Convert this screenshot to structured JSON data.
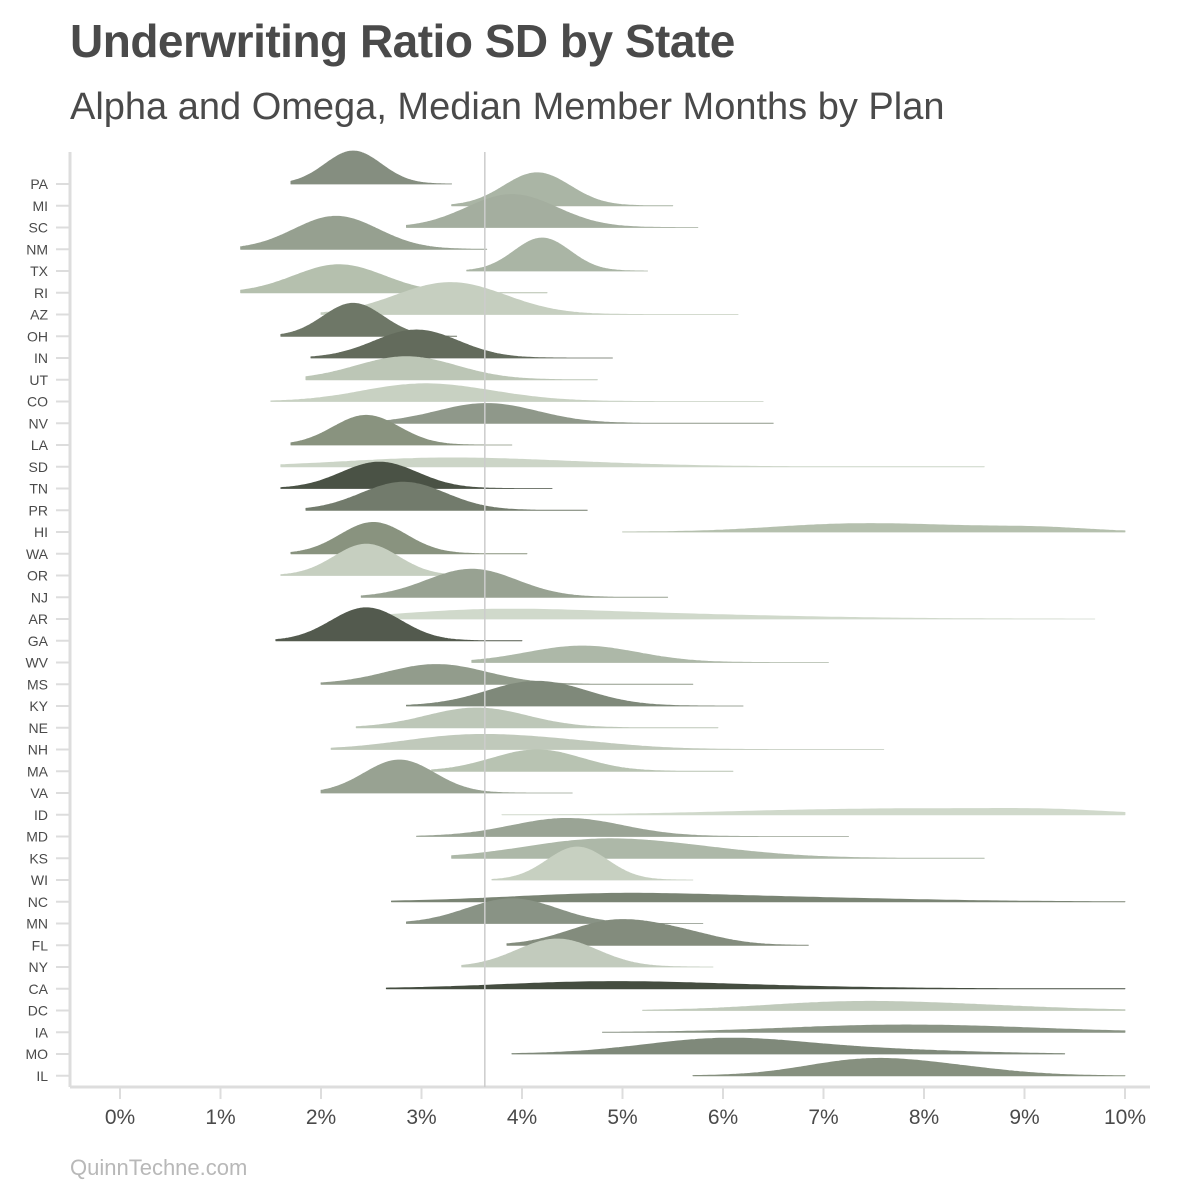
{
  "title": "Underwriting Ratio SD by State",
  "subtitle": "Alpha and Omega, Median Member Months by Plan",
  "caption": "QuinnTechne.com",
  "chart_data": {
    "type": "ridgeline",
    "x_ticks": [
      0,
      1,
      2,
      3,
      4,
      5,
      6,
      7,
      8,
      9,
      10
    ],
    "x_tick_labels": [
      "0%",
      "1%",
      "2%",
      "3%",
      "4%",
      "5%",
      "6%",
      "7%",
      "8%",
      "9%",
      "10%"
    ],
    "xlim": [
      0,
      10
    ],
    "reference_line": 3.63,
    "grid": false,
    "states": [
      {
        "label": "PA",
        "min": 1.7,
        "max": 3.3,
        "peaks": [
          [
            2.32,
            0.28,
            1
          ]
        ],
        "color": "#858e80"
      },
      {
        "label": "MI",
        "min": 3.3,
        "max": 5.5,
        "peaks": [
          [
            4.15,
            0.33,
            1
          ]
        ],
        "color": "#aab5a5"
      },
      {
        "label": "SC",
        "min": 2.85,
        "max": 5.75,
        "peaks": [
          [
            3.9,
            0.45,
            1
          ]
        ],
        "color": "#a4ae9f"
      },
      {
        "label": "NM",
        "min": 1.2,
        "max": 3.65,
        "peaks": [
          [
            2.15,
            0.42,
            1
          ]
        ],
        "color": "#96a090"
      },
      {
        "label": "TX",
        "min": 3.45,
        "max": 5.25,
        "peaks": [
          [
            4.2,
            0.28,
            1
          ]
        ],
        "color": "#aab5a5"
      },
      {
        "label": "RI",
        "min": 1.2,
        "max": 4.25,
        "peaks": [
          [
            2.18,
            0.45,
            0.85
          ]
        ],
        "color": "#b5c0ae"
      },
      {
        "label": "AZ",
        "min": 2.0,
        "max": 6.15,
        "peaks": [
          [
            3.1,
            0.5,
            0.55
          ],
          [
            3.5,
            0.5,
            0.5
          ]
        ],
        "color": "#c6cfc0"
      },
      {
        "label": "OH",
        "min": 1.6,
        "max": 3.35,
        "peaks": [
          [
            2.32,
            0.3,
            1
          ]
        ],
        "color": "#6e7767"
      },
      {
        "label": "IN",
        "min": 1.9,
        "max": 4.9,
        "peaks": [
          [
            2.95,
            0.42,
            0.85
          ]
        ],
        "color": "#636b5c"
      },
      {
        "label": "UT",
        "min": 1.85,
        "max": 4.75,
        "peaks": [
          [
            2.85,
            0.5,
            0.7
          ]
        ],
        "color": "#bcc6b6"
      },
      {
        "label": "CO",
        "min": 1.5,
        "max": 6.4,
        "peaks": [
          [
            2.85,
            0.55,
            0.35
          ],
          [
            3.4,
            0.6,
            0.25
          ]
        ],
        "color": "#c8d1c2"
      },
      {
        "label": "NV",
        "min": 2.3,
        "max": 6.5,
        "peaks": [
          [
            3.65,
            0.5,
            0.6
          ]
        ],
        "color": "#8f988a"
      },
      {
        "label": "LA",
        "min": 1.7,
        "max": 3.9,
        "peaks": [
          [
            2.45,
            0.33,
            0.9
          ]
        ],
        "color": "#89937f"
      },
      {
        "label": "SD",
        "min": 1.6,
        "max": 8.6,
        "peaks": [
          [
            3.0,
            0.9,
            0.2
          ],
          [
            4.2,
            1.0,
            0.12
          ]
        ],
        "color": "#ccd5c7"
      },
      {
        "label": "TN",
        "min": 1.6,
        "max": 4.3,
        "peaks": [
          [
            2.58,
            0.38,
            0.8
          ]
        ],
        "color": "#4a5245"
      },
      {
        "label": "PR",
        "min": 1.85,
        "max": 4.65,
        "peaks": [
          [
            2.82,
            0.42,
            0.85
          ]
        ],
        "color": "#727b6c"
      },
      {
        "label": "HI",
        "min": 5.0,
        "max": 10.0,
        "peaks": [
          [
            7.0,
            0.7,
            0.15
          ],
          [
            8.0,
            0.8,
            0.17
          ],
          [
            9.2,
            0.5,
            0.1
          ]
        ],
        "color": "#b5c0ae"
      },
      {
        "label": "WA",
        "min": 1.7,
        "max": 4.05,
        "peaks": [
          [
            2.52,
            0.33,
            0.95
          ]
        ],
        "color": "#89937f"
      },
      {
        "label": "OR",
        "min": 1.6,
        "max": 3.65,
        "peaks": [
          [
            2.45,
            0.32,
            0.95
          ]
        ],
        "color": "#c6cfc0"
      },
      {
        "label": "NJ",
        "min": 2.4,
        "max": 5.45,
        "peaks": [
          [
            3.5,
            0.45,
            0.85
          ]
        ],
        "color": "#98a292"
      },
      {
        "label": "AR",
        "min": 2.2,
        "max": 9.7,
        "peaks": [
          [
            3.5,
            0.8,
            0.18
          ],
          [
            4.5,
            1.0,
            0.15
          ],
          [
            6.0,
            1.2,
            0.08
          ]
        ],
        "color": "#d0d9cb"
      },
      {
        "label": "GA",
        "min": 1.55,
        "max": 4.0,
        "peaks": [
          [
            2.45,
            0.35,
            1
          ]
        ],
        "color": "#535a4e"
      },
      {
        "label": "WV",
        "min": 3.5,
        "max": 7.05,
        "peaks": [
          [
            4.6,
            0.55,
            0.5
          ]
        ],
        "color": "#adb8a8"
      },
      {
        "label": "MS",
        "min": 2.0,
        "max": 5.7,
        "peaks": [
          [
            3.15,
            0.5,
            0.6
          ]
        ],
        "color": "#929c8c"
      },
      {
        "label": "KY",
        "min": 2.85,
        "max": 6.2,
        "peaks": [
          [
            4.15,
            0.5,
            0.75
          ]
        ],
        "color": "#7f897a"
      },
      {
        "label": "NE",
        "min": 2.35,
        "max": 5.95,
        "peaks": [
          [
            3.55,
            0.5,
            0.6
          ]
        ],
        "color": "#bdc7b8"
      },
      {
        "label": "NH",
        "min": 2.1,
        "max": 7.6,
        "peaks": [
          [
            3.3,
            0.6,
            0.3
          ],
          [
            4.2,
            0.7,
            0.28
          ]
        ],
        "color": "#c0c9bb"
      },
      {
        "label": "MA",
        "min": 3.1,
        "max": 6.1,
        "peaks": [
          [
            4.15,
            0.45,
            0.65
          ]
        ],
        "color": "#b8c3b2"
      },
      {
        "label": "VA",
        "min": 2.0,
        "max": 4.5,
        "peaks": [
          [
            2.78,
            0.35,
            1
          ]
        ],
        "color": "#98a292"
      },
      {
        "label": "ID",
        "min": 3.8,
        "max": 10.0,
        "peaks": [
          [
            6.8,
            1.0,
            0.12
          ],
          [
            8.2,
            0.8,
            0.12
          ],
          [
            9.3,
            0.6,
            0.12
          ]
        ],
        "color": "#d0d9cb"
      },
      {
        "label": "MD",
        "min": 2.95,
        "max": 7.25,
        "peaks": [
          [
            4.45,
            0.55,
            0.55
          ]
        ],
        "color": "#9aa495"
      },
      {
        "label": "KS",
        "min": 3.3,
        "max": 8.6,
        "peaks": [
          [
            4.6,
            0.7,
            0.4
          ],
          [
            5.5,
            0.8,
            0.3
          ]
        ],
        "color": "#adb8a8"
      },
      {
        "label": "WI",
        "min": 3.7,
        "max": 5.7,
        "peaks": [
          [
            4.55,
            0.3,
            1
          ]
        ],
        "color": "#c7d0c1"
      },
      {
        "label": "NC",
        "min": 2.7,
        "max": 10.0,
        "peaks": [
          [
            4.8,
            1.0,
            0.2
          ],
          [
            6.5,
            1.3,
            0.12
          ]
        ],
        "color": "#7a8474"
      },
      {
        "label": "MN",
        "min": 2.85,
        "max": 5.8,
        "peaks": [
          [
            3.9,
            0.45,
            0.75
          ]
        ],
        "color": "#899385"
      },
      {
        "label": "FL",
        "min": 3.85,
        "max": 6.85,
        "peaks": [
          [
            4.9,
            0.45,
            0.7
          ],
          [
            5.6,
            0.4,
            0.3
          ]
        ],
        "color": "#838c7d"
      },
      {
        "label": "NY",
        "min": 3.4,
        "max": 5.9,
        "peaks": [
          [
            4.35,
            0.4,
            0.85
          ]
        ],
        "color": "#c2cbbd"
      },
      {
        "label": "CA",
        "min": 2.65,
        "max": 10.0,
        "peaks": [
          [
            4.7,
            1.0,
            0.17
          ],
          [
            6.0,
            1.2,
            0.08
          ]
        ],
        "color": "#454d40"
      },
      {
        "label": "DC",
        "min": 5.2,
        "max": 10.0,
        "peaks": [
          [
            7.1,
            0.8,
            0.2
          ],
          [
            8.3,
            0.9,
            0.15
          ]
        ],
        "color": "#c0cabb"
      },
      {
        "label": "IA",
        "min": 4.8,
        "max": 10.0,
        "peaks": [
          [
            7.2,
            0.9,
            0.12
          ],
          [
            8.4,
            1.0,
            0.15
          ]
        ],
        "color": "#8a9485"
      },
      {
        "label": "MO",
        "min": 3.9,
        "max": 9.4,
        "peaks": [
          [
            6.0,
            0.8,
            0.45
          ],
          [
            7.5,
            0.9,
            0.12
          ]
        ],
        "color": "#7f897a"
      },
      {
        "label": "IL",
        "min": 5.7,
        "max": 10.0,
        "peaks": [
          [
            7.4,
            0.6,
            0.45
          ],
          [
            8.3,
            0.6,
            0.2
          ]
        ],
        "color": "#86907f"
      }
    ]
  }
}
